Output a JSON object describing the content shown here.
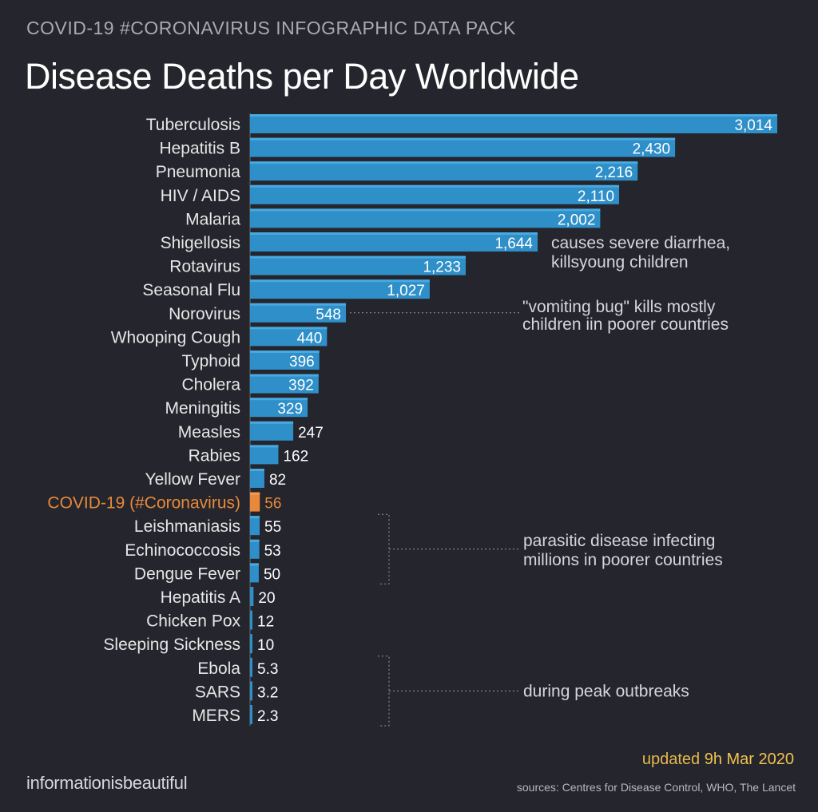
{
  "header": {
    "kicker": "COVID-19 #CORONAVIRUS INFOGRAPHIC DATA PACK",
    "title": "Disease Deaths per Day Worldwide"
  },
  "footer": {
    "updated_prefix": "updated",
    "updated_date": "9h Mar 2020",
    "brand": "informationisbeautiful",
    "sources": "sources: Centres for Disease Control, WHO, The Lancet"
  },
  "colors": {
    "background": "#24252d",
    "bar": "#2f8fc9",
    "bar_highlight": "#e8893a",
    "label": "#e6e6e6",
    "highlight_label": "#e8893a",
    "annotation_line": "#9a9ba0"
  },
  "chart_data": {
    "type": "bar",
    "orientation": "horizontal",
    "title": "Disease Deaths per Day Worldwide",
    "categories": [
      "Tuberculosis",
      "Hepatitis B",
      "Pneumonia",
      "HIV / AIDS",
      "Malaria",
      "Shigellosis",
      "Rotavirus",
      "Seasonal Flu",
      "Norovirus",
      "Whooping Cough",
      "Typhoid",
      "Cholera",
      "Meningitis",
      "Measles",
      "Rabies",
      "Yellow Fever",
      "COVID-19 (#Coronavirus)",
      "Leishmaniasis",
      "Echinococcosis",
      "Dengue Fever",
      "Hepatitis A",
      "Chicken Pox",
      "Sleeping Sickness",
      "Ebola",
      "SARS",
      "MERS"
    ],
    "values": [
      3014,
      2430,
      2216,
      2110,
      2002,
      1644,
      1233,
      1027,
      548,
      440,
      396,
      392,
      329,
      247,
      162,
      82,
      56,
      55,
      53,
      50,
      20,
      12,
      10,
      5.3,
      3.2,
      2.3
    ],
    "value_labels": [
      "3,014",
      "2,430",
      "2,216",
      "2,110",
      "2,002",
      "1,644",
      "1,233",
      "1,027",
      "548",
      "440",
      "396",
      "392",
      "329",
      "247",
      "162",
      "82",
      "56",
      "55",
      "53",
      "50",
      "20",
      "12",
      "10",
      "5.3",
      "3.2",
      "2.3"
    ],
    "highlight": "COVID-19 (#Coronavirus)",
    "xlim": [
      0,
      3014
    ],
    "annotations": [
      {
        "category": "Shigellosis",
        "lines": [
          "causes severe diarrhea,",
          "killsyoung children"
        ]
      },
      {
        "category": "Norovirus",
        "lines": [
          "\"vomiting bug\" kills mostly",
          "children iin poorer countries"
        ]
      },
      {
        "categories": [
          "Leishmaniasis",
          "Echinococcosis",
          "Dengue Fever"
        ],
        "lines": [
          "parasitic disease infecting",
          "millions in poorer countries"
        ]
      },
      {
        "categories": [
          "Ebola",
          "SARS",
          "MERS"
        ],
        "lines": [
          "during peak outbreaks"
        ]
      }
    ]
  }
}
